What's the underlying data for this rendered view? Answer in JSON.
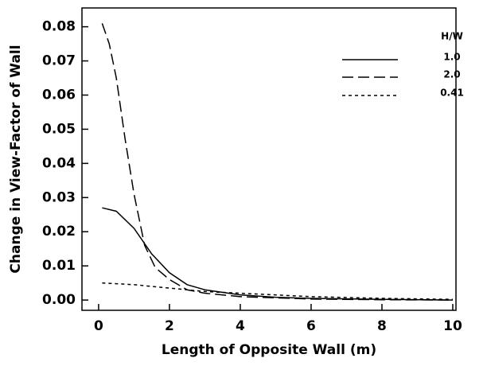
{
  "chart_data": {
    "type": "line",
    "xlabel": "Length of Opposite Wall (m)",
    "ylabel": "Change in View-Factor of Wall",
    "legend_title": "H/W",
    "legend": "upper right",
    "xlim": [
      -0.47,
      10.09
    ],
    "ylim": [
      -0.003,
      0.0855
    ],
    "xticks": [
      0,
      2,
      4,
      6,
      8,
      10
    ],
    "yticks": [
      {
        "value": 0,
        "label": "0.00"
      },
      {
        "value": 0.01,
        "label": "0.01"
      },
      {
        "value": 0.02,
        "label": "0.02"
      },
      {
        "value": 0.03,
        "label": "0.03"
      },
      {
        "value": 0.04,
        "label": "0.04"
      },
      {
        "value": 0.05,
        "label": "0.05"
      },
      {
        "value": 0.06,
        "label": "0.06"
      },
      {
        "value": 0.07,
        "label": "0.07"
      },
      {
        "value": 0.08,
        "label": "0.08"
      }
    ],
    "series": [
      {
        "name": "1.0",
        "color": "#000000",
        "style": "solid",
        "x": [
          0.1,
          0.5,
          1.0,
          1.5,
          2.0,
          2.5,
          3.0,
          4.0,
          5.0,
          6.0,
          8.0,
          10.0
        ],
        "values": [
          0.027,
          0.026,
          0.021,
          0.0135,
          0.008,
          0.0045,
          0.003,
          0.0015,
          0.0008,
          0.0005,
          0.0002,
          0.0
        ]
      },
      {
        "name": "2.0",
        "color": "#000000",
        "style": "dashed",
        "x": [
          0.1,
          0.3,
          0.5,
          0.75,
          1.0,
          1.3,
          1.6,
          2.0,
          2.5,
          3.0,
          4.0,
          6.0,
          8.0,
          10.0
        ],
        "values": [
          0.081,
          0.075,
          0.065,
          0.047,
          0.031,
          0.016,
          0.0095,
          0.006,
          0.003,
          0.002,
          0.001,
          0.0003,
          0.0001,
          0.0
        ]
      },
      {
        "name": "0.41",
        "color": "#000000",
        "style": "dotted",
        "x": [
          0.1,
          1.0,
          2.0,
          3.0,
          4.0,
          6.0,
          8.0,
          10.0
        ],
        "values": [
          0.005,
          0.0045,
          0.0035,
          0.0025,
          0.002,
          0.001,
          0.0005,
          0.0002
        ]
      }
    ]
  }
}
